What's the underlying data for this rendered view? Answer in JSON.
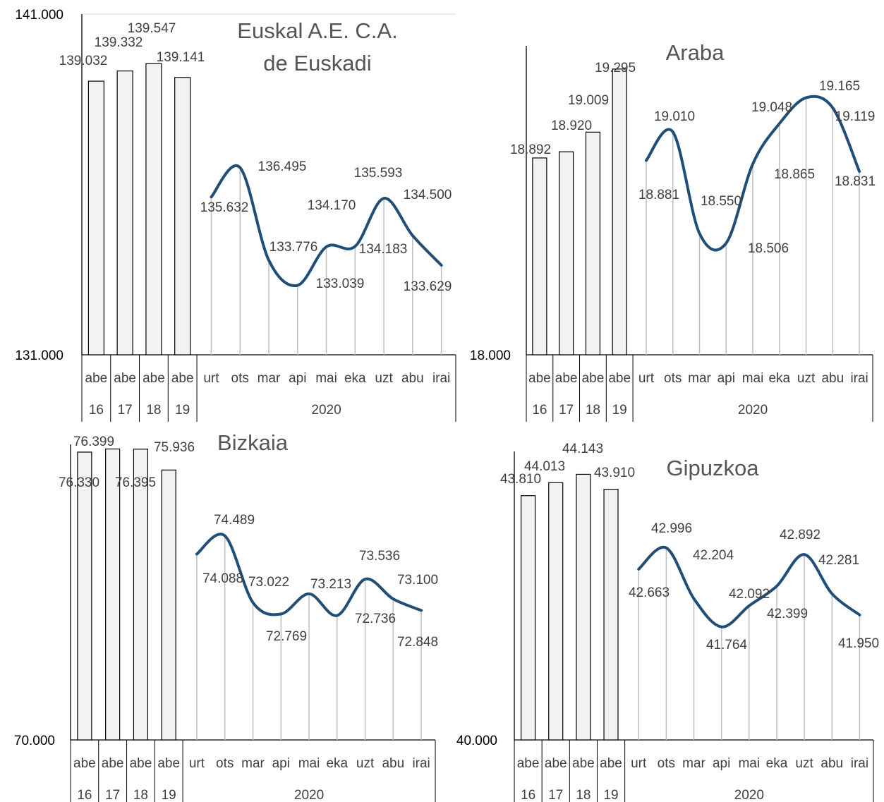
{
  "chart_data": [
    {
      "type": "bar+line",
      "title": "Euskal A.E. C.A. de Euskadi",
      "ylim": [
        131000,
        141000
      ],
      "ymin_label": "131.000",
      "ymax_label": "141.000",
      "bar_categories": [
        "abe",
        "abe",
        "abe",
        "abe"
      ],
      "bar_groups": [
        "16",
        "17",
        "18",
        "19"
      ],
      "bar_values": [
        139032,
        139332,
        139547,
        139141
      ],
      "bar_labels": [
        "139.032",
        "139.332",
        "139.547",
        "139.141"
      ],
      "line_categories": [
        "urt",
        "ots",
        "mar",
        "api",
        "mai",
        "eka",
        "uzt",
        "abu",
        "irai"
      ],
      "line_group": "2020",
      "line_values": [
        135632,
        136495,
        133776,
        133039,
        134170,
        134183,
        135593,
        134500,
        133629
      ],
      "line_labels": [
        "135.632",
        "136.495",
        "133.776",
        "133.039",
        "134.170",
        "134.183",
        "135.593",
        "134.500",
        "133.629"
      ],
      "line_color": "#1f4e79"
    },
    {
      "type": "bar+line",
      "title": "Araba",
      "ylim": [
        18000,
        19400
      ],
      "ymin_label": "18.000",
      "bar_categories": [
        "abe",
        "abe",
        "abe",
        "abe"
      ],
      "bar_groups": [
        "16",
        "17",
        "18",
        "19"
      ],
      "bar_values": [
        18892,
        18920,
        19009,
        19295
      ],
      "bar_labels": [
        "18.892",
        "18.920",
        "19.009",
        "19.295"
      ],
      "line_categories": [
        "urt",
        "ots",
        "mar",
        "api",
        "mai",
        "eka",
        "uzt",
        "abu",
        "irai"
      ],
      "line_group": "2020",
      "line_values": [
        18881,
        19010,
        18550,
        18506,
        18865,
        19048,
        19165,
        19119,
        18831
      ],
      "line_labels": [
        "18.881",
        "19.010",
        "18.550",
        "18.506",
        "18.865",
        "19.048",
        "19.165",
        "19.119",
        "18.831"
      ],
      "line_color": "#1f4e79"
    },
    {
      "type": "bar+line",
      "title": "Bizkaia",
      "ylim": [
        70000,
        76500
      ],
      "ymin_label": "70.000",
      "bar_categories": [
        "abe",
        "abe",
        "abe",
        "abe"
      ],
      "bar_groups": [
        "16",
        "17",
        "18",
        "19"
      ],
      "bar_values": [
        76330,
        76399,
        76395,
        75936
      ],
      "bar_labels": [
        "76.330",
        "76.399",
        "76.395",
        "75.936"
      ],
      "line_categories": [
        "urt",
        "ots",
        "mar",
        "api",
        "mai",
        "eka",
        "uzt",
        "abu",
        "irai"
      ],
      "line_group": "2020",
      "line_values": [
        74088,
        74489,
        73022,
        72769,
        73213,
        72736,
        73536,
        73100,
        72848
      ],
      "line_labels": [
        "74.088",
        "74.489",
        "73.022",
        "72.769",
        "73.213",
        "72.736",
        "73.536",
        "73.100",
        "72.848"
      ],
      "line_color": "#1f4e79"
    },
    {
      "type": "bar+line",
      "title": "Gipuzkoa",
      "ylim": [
        40000,
        44500
      ],
      "ymin_label": "40.000",
      "bar_categories": [
        "abe",
        "abe",
        "abe",
        "abe"
      ],
      "bar_groups": [
        "16",
        "17",
        "18",
        "19"
      ],
      "bar_values": [
        43810,
        44013,
        44143,
        43910
      ],
      "bar_labels": [
        "43.810",
        "44.013",
        "44.143",
        "43.910"
      ],
      "line_categories": [
        "urt",
        "ots",
        "mar",
        "api",
        "mai",
        "eka",
        "uzt",
        "abu",
        "irai"
      ],
      "line_group": "2020",
      "line_values": [
        42663,
        42996,
        42204,
        41764,
        42092,
        42399,
        42892,
        42281,
        41950
      ],
      "line_labels": [
        "42.663",
        "42.996",
        "42.204",
        "41.764",
        "42.092",
        "42.399",
        "42.892",
        "42.281",
        "41.950"
      ],
      "line_color": "#1f4e79"
    }
  ]
}
